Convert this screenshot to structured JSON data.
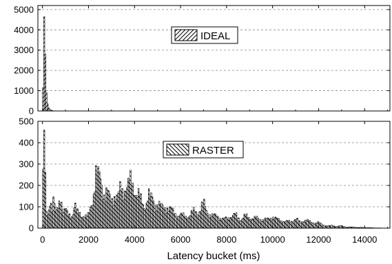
{
  "chart_data": [
    {
      "type": "bar",
      "panel": "top",
      "legend": {
        "label": "IDEAL",
        "pattern": "forward-diagonal-hatch",
        "placement": "upper-center"
      },
      "xlim": [
        -200,
        15100
      ],
      "ylim": [
        0,
        5200
      ],
      "yticks": [
        0,
        1000,
        2000,
        3000,
        4000,
        5000
      ],
      "grid": "horizontal dashed",
      "bucket_width": 50,
      "x": [
        25,
        75,
        125,
        175,
        225,
        275,
        325,
        375,
        425,
        475
      ],
      "values": [
        1150,
        4650,
        2800,
        900,
        350,
        150,
        80,
        40,
        20,
        10
      ]
    },
    {
      "type": "bar",
      "panel": "bottom",
      "legend": {
        "label": "RASTER",
        "pattern": "backward-diagonal-hatch",
        "placement": "upper-center"
      },
      "xlabel": "Latency bucket (ms)",
      "xlim": [
        -200,
        15100
      ],
      "xticks": [
        0,
        2000,
        4000,
        6000,
        8000,
        10000,
        12000,
        14000
      ],
      "ylim": [
        0,
        500
      ],
      "yticks": [
        0,
        100,
        200,
        300,
        400,
        500
      ],
      "grid": "horizontal dashed",
      "bucket_width": 50,
      "anchor_points": [
        [
          25,
          235
        ],
        [
          75,
          435
        ],
        [
          125,
          210
        ],
        [
          175,
          70
        ],
        [
          250,
          55
        ],
        [
          300,
          120
        ],
        [
          350,
          170
        ],
        [
          400,
          75
        ],
        [
          450,
          110
        ],
        [
          500,
          150
        ],
        [
          550,
          60
        ],
        [
          600,
          70
        ],
        [
          650,
          95
        ],
        [
          700,
          100
        ],
        [
          750,
          150
        ],
        [
          800,
          180
        ],
        [
          850,
          80
        ],
        [
          900,
          100
        ],
        [
          950,
          70
        ],
        [
          1000,
          90
        ],
        [
          1100,
          60
        ],
        [
          1200,
          65
        ],
        [
          1300,
          60
        ],
        [
          1400,
          110
        ],
        [
          1500,
          70
        ],
        [
          1600,
          75
        ],
        [
          1700,
          60
        ],
        [
          1800,
          60
        ],
        [
          1900,
          50
        ],
        [
          2000,
          60
        ],
        [
          2100,
          110
        ],
        [
          2200,
          150
        ],
        [
          2300,
          220
        ],
        [
          2350,
          270
        ],
        [
          2400,
          225
        ],
        [
          2500,
          250
        ],
        [
          2600,
          200
        ],
        [
          2700,
          150
        ],
        [
          2800,
          170
        ],
        [
          2900,
          140
        ],
        [
          3000,
          130
        ],
        [
          3100,
          160
        ],
        [
          3200,
          145
        ],
        [
          3300,
          140
        ],
        [
          3400,
          190
        ],
        [
          3500,
          175
        ],
        [
          3600,
          200
        ],
        [
          3700,
          190
        ],
        [
          3800,
          215
        ],
        [
          3900,
          210
        ],
        [
          4000,
          190
        ],
        [
          4100,
          160
        ],
        [
          4200,
          150
        ],
        [
          4300,
          120
        ],
        [
          4400,
          105
        ],
        [
          4500,
          110
        ],
        [
          4600,
          160
        ],
        [
          4700,
          130
        ],
        [
          4800,
          140
        ],
        [
          4900,
          110
        ],
        [
          5000,
          115
        ],
        [
          5200,
          95
        ],
        [
          5400,
          100
        ],
        [
          5600,
          85
        ],
        [
          5800,
          65
        ],
        [
          6000,
          60
        ],
        [
          6200,
          55
        ],
        [
          6400,
          60
        ],
        [
          6600,
          80
        ],
        [
          6800,
          75
        ],
        [
          7000,
          115
        ],
        [
          7200,
          70
        ],
        [
          7400,
          55
        ],
        [
          7600,
          60
        ],
        [
          7800,
          40
        ],
        [
          8000,
          45
        ],
        [
          8200,
          55
        ],
        [
          8400,
          60
        ],
        [
          8600,
          40
        ],
        [
          8800,
          55
        ],
        [
          9000,
          50
        ],
        [
          9200,
          45
        ],
        [
          9400,
          45
        ],
        [
          9600,
          40
        ],
        [
          9800,
          40
        ],
        [
          10000,
          55
        ],
        [
          10200,
          40
        ],
        [
          10400,
          35
        ],
        [
          10600,
          30
        ],
        [
          10800,
          30
        ],
        [
          11000,
          45
        ],
        [
          11200,
          25
        ],
        [
          11400,
          40
        ],
        [
          11600,
          30
        ],
        [
          11800,
          25
        ],
        [
          12000,
          25
        ],
        [
          12200,
          15
        ],
        [
          12400,
          10
        ],
        [
          12600,
          12
        ],
        [
          12800,
          8
        ],
        [
          13000,
          10
        ],
        [
          13200,
          5
        ],
        [
          13400,
          5
        ],
        [
          13600,
          4
        ],
        [
          13800,
          3
        ],
        [
          14000,
          2
        ],
        [
          14200,
          2
        ],
        [
          14400,
          1
        ],
        [
          14600,
          1
        ],
        [
          14800,
          0
        ],
        [
          15000,
          0
        ]
      ]
    }
  ]
}
